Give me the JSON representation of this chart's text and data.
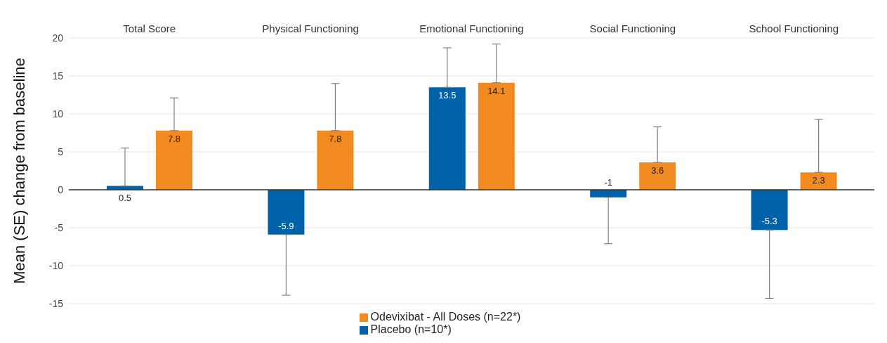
{
  "chart_data": {
    "type": "bar",
    "ylabel": "Mean (SE) change from baseline",
    "categories": [
      "Total Score",
      "Physical Functioning",
      "Emotional Functioning",
      "Social Functioning",
      "School Functioning"
    ],
    "series": [
      {
        "name": "Placebo (n=10*)",
        "color": "#0062a9",
        "values": [
          0.5,
          -5.9,
          13.5,
          -1,
          -5.3
        ],
        "errors": [
          [
            0.5,
            5.5
          ],
          [
            -13.9,
            -5.9
          ],
          [
            13.5,
            18.7
          ],
          [
            -7.1,
            -1
          ],
          [
            -14.3,
            -5.3
          ]
        ]
      },
      {
        "name": "Odevixibat - All Doses (n=22*)",
        "color": "#f28a22",
        "values": [
          7.8,
          7.8,
          14.1,
          3.6,
          2.3
        ],
        "errors": [
          [
            7.8,
            12.1
          ],
          [
            7.8,
            14.0
          ],
          [
            14.1,
            19.2
          ],
          [
            3.6,
            8.3
          ],
          [
            2.3,
            9.3
          ]
        ]
      }
    ],
    "ylim": [
      -15,
      20
    ],
    "yticks": [
      -15,
      -10,
      -5,
      0,
      5,
      10,
      15,
      20
    ],
    "grid": "y",
    "legend": "bottom",
    "data_labels": true
  }
}
